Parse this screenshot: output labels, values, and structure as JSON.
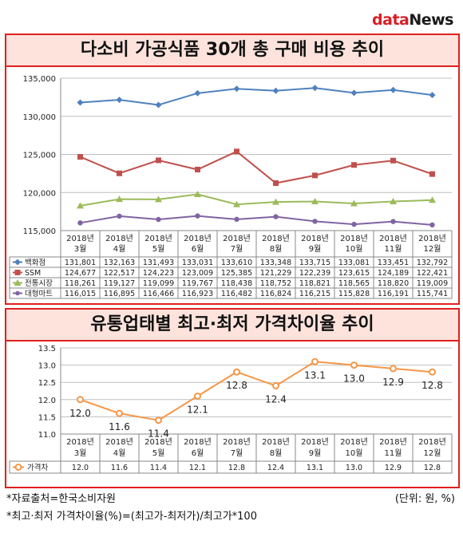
{
  "logo": {
    "part1": "data",
    "part2": "News"
  },
  "chart1": {
    "title": "다소비 가공식품 30개 총 구매 비용 추이",
    "categories": [
      [
        "2018년",
        "3월"
      ],
      [
        "2018년",
        "4월"
      ],
      [
        "2018년",
        "5월"
      ],
      [
        "2018년",
        "6월"
      ],
      [
        "2018년",
        "7월"
      ],
      [
        "2018년",
        "8월"
      ],
      [
        "2018년",
        "9월"
      ],
      [
        "2018년",
        "10월"
      ],
      [
        "2018년",
        "11월"
      ],
      [
        "2018년",
        "12월"
      ]
    ],
    "yticks": [
      "135,000",
      "130,000",
      "125,000",
      "120,000",
      "115,000"
    ],
    "ylim": [
      115000,
      135000
    ],
    "colors": {
      "백화점": "#4f81bd",
      "SSM": "#c0504d",
      "전통시장": "#9bbb59",
      "대형마트": "#8064a2"
    },
    "series": [
      {
        "name": "백화점",
        "values": [
          131801,
          132163,
          131493,
          133031,
          133610,
          133348,
          133715,
          133081,
          133451,
          132792
        ],
        "labels": [
          "131,801",
          "132,163",
          "131,493",
          "133,031",
          "133,610",
          "133,348",
          "133,715",
          "133,081",
          "133,451",
          "132,792"
        ]
      },
      {
        "name": "SSM",
        "values": [
          124677,
          122517,
          124223,
          123009,
          125385,
          121229,
          122239,
          123615,
          124189,
          122421
        ],
        "labels": [
          "124,677",
          "122,517",
          "124,223",
          "123,009",
          "125,385",
          "121,229",
          "122,239",
          "123,615",
          "124,189",
          "122,421"
        ]
      },
      {
        "name": "전통시장",
        "values": [
          118261,
          119127,
          119099,
          119767,
          118438,
          118752,
          118821,
          118565,
          118820,
          119009
        ],
        "labels": [
          "118,261",
          "119,127",
          "119,099",
          "119,767",
          "118,438",
          "118,752",
          "118,821",
          "118,565",
          "118,820",
          "119,009"
        ]
      },
      {
        "name": "대형마트",
        "values": [
          116015,
          116895,
          116466,
          116923,
          116482,
          116824,
          116215,
          115828,
          116191,
          115741
        ],
        "labels": [
          "116,015",
          "116,895",
          "116,466",
          "116,923",
          "116,482",
          "116,824",
          "116,215",
          "115,828",
          "116,191",
          "115,741"
        ]
      }
    ]
  },
  "chart2": {
    "title": "유통업태별 최고·최저 가격차이율 추이",
    "categories": [
      [
        "2018년",
        "3월"
      ],
      [
        "2018년",
        "4월"
      ],
      [
        "2018년",
        "5월"
      ],
      [
        "2018년",
        "6월"
      ],
      [
        "2018년",
        "7월"
      ],
      [
        "2018년",
        "8월"
      ],
      [
        "2018년",
        "9월"
      ],
      [
        "2018년",
        "10월"
      ],
      [
        "2018년",
        "11월"
      ],
      [
        "2018년",
        "12월"
      ]
    ],
    "yticks": [
      "13.5",
      "13.0",
      "12.5",
      "12.0",
      "11.5",
      "11.0"
    ],
    "ylim": [
      11.0,
      13.5
    ],
    "color": "#f79646",
    "series": [
      {
        "name": "가격차",
        "values": [
          12.0,
          11.6,
          11.4,
          12.1,
          12.8,
          12.4,
          13.1,
          13.0,
          12.9,
          12.8
        ],
        "labels": [
          "12.0",
          "11.6",
          "11.4",
          "12.1",
          "12.8",
          "12.4",
          "13.1",
          "13.0",
          "12.9",
          "12.8"
        ]
      }
    ]
  },
  "chart_data": [
    {
      "type": "line",
      "title": "다소비 가공식품 30개 총 구매 비용 추이",
      "x": [
        "2018년 3월",
        "2018년 4월",
        "2018년 5월",
        "2018년 6월",
        "2018년 7월",
        "2018년 8월",
        "2018년 9월",
        "2018년 10월",
        "2018년 11월",
        "2018년 12월"
      ],
      "ylim": [
        115000,
        135000
      ],
      "grid": true,
      "legend": "data-table",
      "series": [
        {
          "name": "백화점",
          "values": [
            131801,
            132163,
            131493,
            133031,
            133610,
            133348,
            133715,
            133081,
            133451,
            132792
          ]
        },
        {
          "name": "SSM",
          "values": [
            124677,
            122517,
            124223,
            123009,
            125385,
            121229,
            122239,
            123615,
            124189,
            122421
          ]
        },
        {
          "name": "전통시장",
          "values": [
            118261,
            119127,
            119099,
            119767,
            118438,
            118752,
            118821,
            118565,
            118820,
            119009
          ]
        },
        {
          "name": "대형마트",
          "values": [
            116015,
            116895,
            116466,
            116923,
            116482,
            116824,
            116215,
            115828,
            116191,
            115741
          ]
        }
      ]
    },
    {
      "type": "line",
      "title": "유통업태별 최고·최저 가격차이율 추이",
      "x": [
        "2018년 3월",
        "2018년 4월",
        "2018년 5월",
        "2018년 6월",
        "2018년 7월",
        "2018년 8월",
        "2018년 9월",
        "2018년 10월",
        "2018년 11월",
        "2018년 12월"
      ],
      "ylim": [
        11.0,
        13.5
      ],
      "grid": true,
      "legend": "data-table",
      "series": [
        {
          "name": "가격차",
          "values": [
            12.0,
            11.6,
            11.4,
            12.1,
            12.8,
            12.4,
            13.1,
            13.0,
            12.9,
            12.8
          ]
        }
      ]
    }
  ],
  "footer": {
    "source": "*자료출처=한국소비자원",
    "unit": "(단위: 원, %)",
    "formula": "*최고·최저 가격차이율(%)=(최고가-최저가)/최고가*100"
  }
}
